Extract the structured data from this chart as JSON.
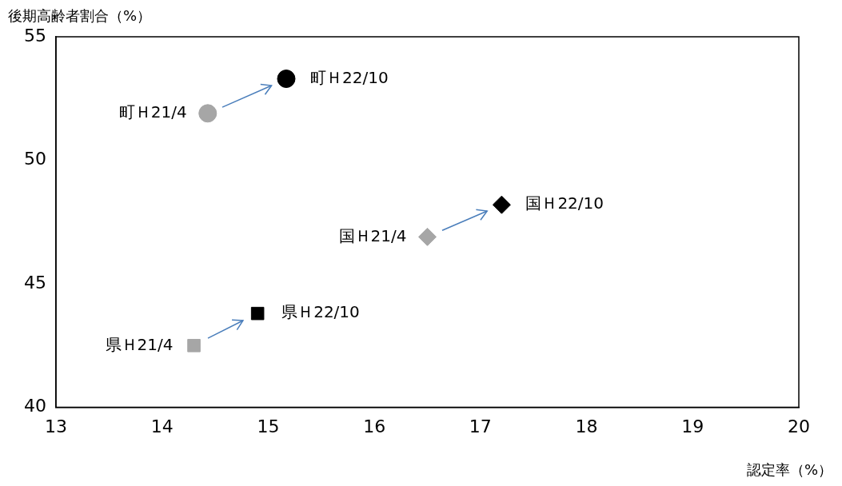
{
  "chart_data": {
    "type": "scatter",
    "xlabel": "認定率（%）",
    "ylabel": "後期高齢者割合（%）",
    "series": [
      {
        "name": "町Ｈ21/4",
        "color": "#a6a6a6",
        "marker": "circle",
        "x": [
          14.43
        ],
        "values": [
          51.9
        ]
      },
      {
        "name": "町Ｈ22/10",
        "color": "#000000",
        "marker": "circle",
        "x": [
          15.17
        ],
        "values": [
          53.3
        ]
      },
      {
        "name": "国Ｈ21/4",
        "color": "#a6a6a6",
        "marker": "diamond",
        "x": [
          16.5
        ],
        "values": [
          46.9
        ]
      },
      {
        "name": "国Ｈ22/10",
        "color": "#000000",
        "marker": "diamond",
        "x": [
          17.2
        ],
        "values": [
          48.2
        ]
      },
      {
        "name": "県Ｈ21/4",
        "color": "#a6a6a6",
        "marker": "square",
        "x": [
          14.3
        ],
        "values": [
          42.5
        ]
      },
      {
        "name": "県Ｈ22/10",
        "color": "#000000",
        "marker": "square",
        "x": [
          14.9
        ],
        "values": [
          43.8
        ]
      }
    ],
    "xlim": [
      13,
      20
    ],
    "xticks": [
      13,
      14,
      15,
      16,
      17,
      18,
      19,
      20
    ],
    "ylim": [
      40,
      55
    ],
    "yticks": [
      40,
      45,
      50,
      55
    ],
    "grid": false,
    "legend": false
  }
}
